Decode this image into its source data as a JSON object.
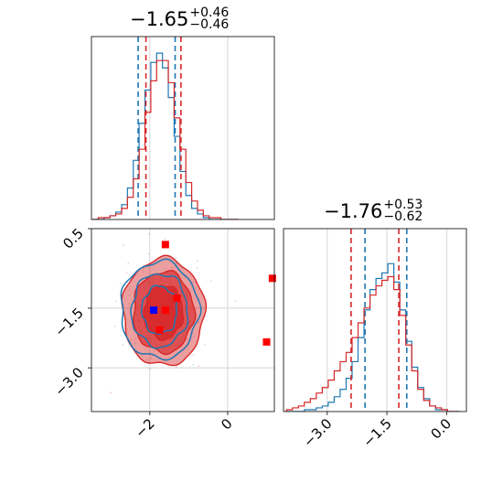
{
  "titles": {
    "p1": {
      "value": "−1.65",
      "upper": "+0.46",
      "lower": "−0.46"
    },
    "p2": {
      "value": "−1.76",
      "upper": "+0.53",
      "lower": "−0.62"
    }
  },
  "colors": {
    "series_a": "#1f77b4",
    "series_b": "#d62728",
    "marker_a": "#0000ff",
    "marker_b": "#ff0000",
    "grid": "#cccccc"
  },
  "chart_data": [
    {
      "type": "histogram",
      "panel": "top-left (marginal of parameter 1)",
      "title": "−1.65 +0.46 −0.46",
      "xlim": [
        -3.5,
        1.2
      ],
      "series": [
        {
          "color": "#1f77b4",
          "quantile_lines": [
            -2.3,
            -1.35
          ],
          "centers": [
            -3.4,
            -3.25,
            -3.1,
            -2.95,
            -2.8,
            -2.65,
            -2.5,
            -2.35,
            -2.2,
            -2.05,
            -1.9,
            -1.75,
            -1.6,
            -1.45,
            -1.3,
            -1.15,
            -1.0,
            -0.85,
            -0.7,
            -0.55,
            -0.4,
            -0.25,
            -0.1,
            0.05,
            0.2
          ],
          "counts": [
            0,
            0,
            1,
            2,
            4,
            8,
            17,
            32,
            52,
            70,
            85,
            90,
            82,
            66,
            45,
            26,
            13,
            6,
            3,
            1,
            0,
            0,
            0,
            0,
            0
          ]
        },
        {
          "color": "#d62728",
          "quantile_lines": [
            -2.1,
            -1.2
          ],
          "centers": [
            -3.4,
            -3.25,
            -3.1,
            -2.95,
            -2.8,
            -2.65,
            -2.5,
            -2.35,
            -2.2,
            -2.05,
            -1.9,
            -1.75,
            -1.6,
            -1.45,
            -1.3,
            -1.15,
            -1.0,
            -0.85,
            -0.7,
            -0.55,
            -0.4,
            -0.25,
            -0.1,
            0.05,
            0.2
          ],
          "counts": [
            0,
            1,
            1,
            2,
            3,
            6,
            12,
            22,
            38,
            58,
            75,
            86,
            86,
            74,
            55,
            38,
            20,
            10,
            5,
            2,
            1,
            1,
            0,
            0,
            0
          ]
        }
      ]
    },
    {
      "type": "contour",
      "panel": "bottom-left (joint distribution)",
      "xlim": [
        -3.5,
        1.2
      ],
      "ylim": [
        -4.1,
        0.5
      ],
      "xticks": [
        "−2",
        "0"
      ],
      "yticks": [
        "0.5",
        "−1.5",
        "−3.0"
      ],
      "series": [
        {
          "color": "#1f77b4",
          "center": [
            -1.75,
            -1.55
          ],
          "filled": false
        },
        {
          "color": "#d62728",
          "center": [
            -1.65,
            -1.6
          ],
          "filled": true
        }
      ],
      "markers": [
        {
          "color": "#0000ff",
          "x": -1.9,
          "y": -1.55
        },
        {
          "color": "#ff0000",
          "x": -1.6,
          "y": 0.1
        },
        {
          "color": "#ff0000",
          "x": -1.3,
          "y": -1.25
        },
        {
          "color": "#ff0000",
          "x": -1.6,
          "y": -1.55
        },
        {
          "color": "#ff0000",
          "x": -1.75,
          "y": -2.05
        },
        {
          "color": "#ff0000",
          "x": 1.15,
          "y": -0.75
        },
        {
          "color": "#ff0000",
          "x": 1.0,
          "y": -2.35
        }
      ]
    },
    {
      "type": "histogram",
      "panel": "bottom-right (marginal of parameter 2)",
      "title": "−1.76 +0.53 −0.62",
      "xlim": [
        -4.1,
        0.5
      ],
      "xticks": [
        "−3.0",
        "−1.5",
        "0.0"
      ],
      "series": [
        {
          "color": "#1f77b4",
          "quantile_lines": [
            -2.05,
            -1.0
          ],
          "centers": [
            -3.95,
            -3.8,
            -3.65,
            -3.5,
            -3.35,
            -3.2,
            -3.05,
            -2.9,
            -2.75,
            -2.6,
            -2.45,
            -2.3,
            -2.15,
            -2.0,
            -1.85,
            -1.7,
            -1.55,
            -1.4,
            -1.25,
            -1.1,
            -0.95,
            -0.8,
            -0.65,
            -0.5,
            -0.35,
            -0.2,
            -0.05,
            0.1,
            0.25
          ],
          "counts": [
            0,
            0,
            0,
            1,
            1,
            2,
            3,
            5,
            8,
            12,
            18,
            27,
            40,
            55,
            66,
            72,
            75,
            80,
            70,
            55,
            38,
            24,
            13,
            7,
            3,
            1,
            1,
            0,
            0
          ]
        },
        {
          "color": "#d62728",
          "quantile_lines": [
            -2.4,
            -1.2
          ],
          "centers": [
            -3.95,
            -3.8,
            -3.65,
            -3.5,
            -3.35,
            -3.2,
            -3.05,
            -2.9,
            -2.75,
            -2.6,
            -2.45,
            -2.3,
            -2.15,
            -2.0,
            -1.85,
            -1.7,
            -1.55,
            -1.4,
            -1.25,
            -1.1,
            -0.95,
            -0.8,
            -0.65,
            -0.5,
            -0.35,
            -0.2,
            -0.05,
            0.1,
            0.25
          ],
          "counts": [
            1,
            2,
            3,
            5,
            7,
            10,
            13,
            17,
            22,
            27,
            32,
            40,
            48,
            56,
            63,
            68,
            71,
            73,
            66,
            52,
            36,
            22,
            12,
            6,
            3,
            2,
            1,
            0,
            0
          ]
        }
      ]
    }
  ]
}
